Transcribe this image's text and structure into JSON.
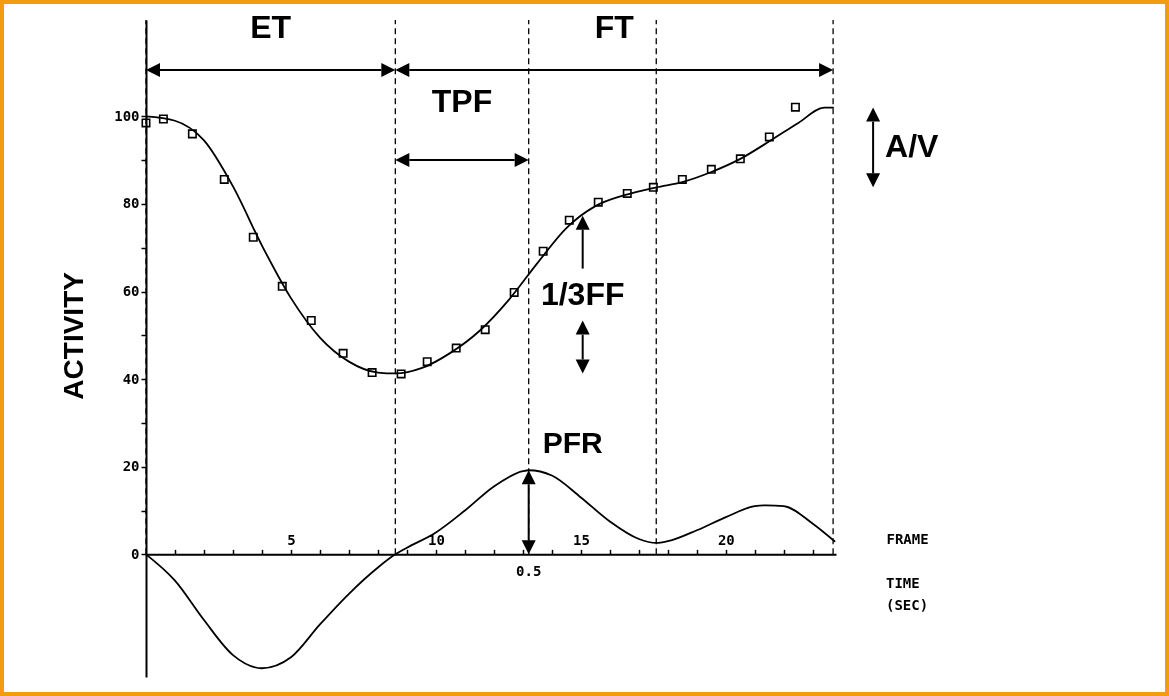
{
  "chart_data": {
    "type": "line",
    "ylabel": "ACTIVITY",
    "xlabel": "FRAME",
    "xlim": [
      0,
      23.8
    ],
    "xticks": [
      {
        "value": 1,
        "label": null
      },
      {
        "value": 2,
        "label": null
      },
      {
        "value": 3,
        "label": null
      },
      {
        "value": 4,
        "label": null
      },
      5,
      {
        "value": 6,
        "label": null
      },
      {
        "value": 7,
        "label": null
      },
      {
        "value": 8,
        "label": null
      },
      {
        "value": 9,
        "label": null
      },
      10,
      {
        "value": 11,
        "label": null
      },
      {
        "value": 12,
        "label": null
      },
      {
        "value": 13,
        "label": null
      },
      {
        "value": 14,
        "label": null
      },
      15,
      {
        "value": 16,
        "label": null
      },
      {
        "value": 17,
        "label": null
      },
      {
        "value": 18,
        "label": null
      },
      {
        "value": 19,
        "label": null
      },
      20,
      {
        "value": 21,
        "label": null
      },
      {
        "value": 22,
        "label": null
      },
      {
        "value": 23,
        "label": null
      }
    ],
    "ylim": [
      -28,
      122
    ],
    "yticks": [
      0,
      {
        "value": 10,
        "label": null
      },
      20,
      {
        "value": 30,
        "label": null
      },
      40,
      {
        "value": 50,
        "label": null
      },
      60,
      {
        "value": 70,
        "label": null
      },
      80,
      {
        "value": 90,
        "label": null
      },
      100
    ],
    "series": [
      {
        "type": "scatter",
        "marker": "square",
        "color": "#000000",
        "x": [
          0,
          0.6,
          1.6,
          2.7,
          3.7,
          4.7,
          5.7,
          6.8,
          7.8,
          8.8,
          9.7,
          10.7,
          11.7,
          12.7,
          13.7,
          14.6,
          15.6,
          16.6,
          17.5,
          18.5,
          19.5,
          20.5,
          21.5,
          22.4
        ],
        "values": [
          98.5,
          99.4,
          96,
          85.6,
          72.4,
          61.2,
          53.4,
          45.9,
          41.5,
          41.2,
          44,
          47.1,
          51.3,
          59.8,
          69.2,
          76.3,
          80.4,
          82.4,
          83.8,
          85.6,
          87.9,
          90.3,
          95.3,
          102.1
        ]
      },
      {
        "color": "#000000",
        "x": [
          0,
          1,
          2,
          3,
          4,
          5,
          6,
          7,
          8,
          8.6,
          9.5,
          10.5,
          11.5,
          12.5,
          13.5,
          14.5,
          15.5,
          16.5,
          17.6,
          18.5,
          19.5,
          20.5,
          21.5,
          22.5,
          23.4,
          23.7
        ],
        "values": [
          100,
          99,
          94.5,
          84,
          70.5,
          58.5,
          49.5,
          44,
          41.5,
          41.3,
          42.5,
          46,
          51,
          58,
          66.5,
          74.5,
          79.5,
          82,
          83.8,
          85,
          87.3,
          90.3,
          94.3,
          98.5,
          102,
          102
        ]
      },
      {
        "color": "#000000",
        "x": [
          0,
          1,
          2,
          3,
          4,
          5,
          6,
          7,
          8,
          8.6,
          9,
          10,
          11,
          12,
          13,
          13.2,
          14,
          15,
          16,
          17,
          17.6,
          18,
          19,
          20,
          21,
          21.4,
          22,
          23,
          23.75
        ],
        "values": [
          0,
          -6,
          -15,
          -23,
          -26,
          -23.5,
          -16,
          -9,
          -3,
          0,
          1.5,
          5,
          10,
          15.5,
          19,
          19.2,
          18,
          13,
          7.5,
          3.5,
          2.6,
          3,
          5.5,
          8.5,
          11,
          11.2,
          11,
          7,
          3
        ]
      }
    ],
    "ref_lines": [
      {
        "axis": "x",
        "value": 0,
        "color": "#000000",
        "line_style": "dashed"
      },
      {
        "axis": "x",
        "value": 8.6,
        "color": "#000000",
        "line_style": "dashed"
      },
      {
        "axis": "x",
        "value": 13.2,
        "color": "#000000",
        "line_style": "dashed"
      },
      {
        "axis": "x",
        "value": 17.6,
        "color": "#000000",
        "line_style": "dashed"
      },
      {
        "axis": "x",
        "value": 23.7,
        "color": "#000000",
        "line_style": "dashed"
      }
    ],
    "annotations": [
      "ET",
      "FT",
      "TPF",
      "1/3FF",
      "A/V",
      {
        "text": "PFR",
        "x": 13.2,
        "y": 19.2
      },
      "0.5",
      "TIME (SEC)"
    ]
  }
}
